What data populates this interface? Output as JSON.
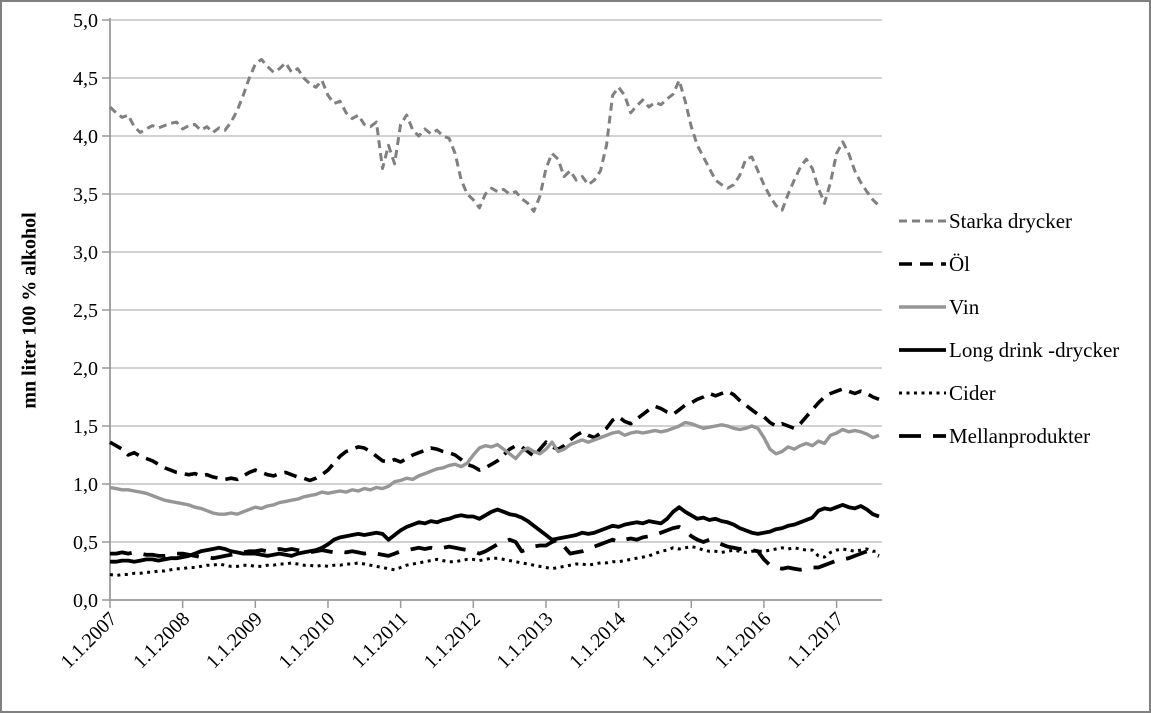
{
  "chart_data": {
    "type": "line",
    "title": "",
    "ylabel": "mn liter 100 % alkohol",
    "ylim": [
      0,
      5
    ],
    "grid": "horizontal",
    "legend_position": "right",
    "x_frequency": "monthly",
    "x_tick_labels": [
      "1.1.2007",
      "1.1.2008",
      "1.1.2009",
      "1.1.2010",
      "1.1.2011",
      "1.1.2012",
      "1.1.2013",
      "1.1.2014",
      "1.1.2015",
      "1.1.2016",
      "1.1.2017"
    ],
    "y_ticks": [
      {
        "v": 0.0,
        "label": "0,0"
      },
      {
        "v": 0.5,
        "label": "0,5"
      },
      {
        "v": 1.0,
        "label": "1,0"
      },
      {
        "v": 1.5,
        "label": "1,5"
      },
      {
        "v": 2.0,
        "label": "2,0"
      },
      {
        "v": 2.5,
        "label": "2,5"
      },
      {
        "v": 3.0,
        "label": "3,0"
      },
      {
        "v": 3.5,
        "label": "3,5"
      },
      {
        "v": 4.0,
        "label": "4,0"
      },
      {
        "v": 4.5,
        "label": "4,5"
      },
      {
        "v": 5.0,
        "label": "5,0"
      }
    ],
    "series": [
      {
        "name": "Starka drycker",
        "color": "#808080",
        "line": "dash",
        "dash": "8 5",
        "width": 3,
        "values": [
          4.25,
          4.2,
          4.16,
          4.18,
          4.08,
          4.03,
          4.06,
          4.09,
          4.07,
          4.09,
          4.11,
          4.12,
          4.06,
          4.09,
          4.1,
          4.05,
          4.08,
          4.03,
          4.07,
          4.05,
          4.12,
          4.22,
          4.35,
          4.5,
          4.62,
          4.66,
          4.6,
          4.55,
          4.58,
          4.63,
          4.55,
          4.58,
          4.5,
          4.45,
          4.42,
          4.48,
          4.35,
          4.28,
          4.3,
          4.2,
          4.15,
          4.18,
          4.1,
          4.08,
          4.12,
          3.72,
          3.92,
          3.76,
          4.1,
          4.18,
          4.05,
          4.0,
          4.06,
          4.02,
          4.05,
          4.0,
          3.98,
          3.85,
          3.62,
          3.5,
          3.45,
          3.38,
          3.5,
          3.55,
          3.52,
          3.54,
          3.5,
          3.52,
          3.46,
          3.42,
          3.35,
          3.48,
          3.72,
          3.85,
          3.8,
          3.65,
          3.7,
          3.62,
          3.65,
          3.58,
          3.62,
          3.7,
          3.92,
          4.35,
          4.42,
          4.35,
          4.2,
          4.26,
          4.31,
          4.25,
          4.29,
          4.27,
          4.32,
          4.36,
          4.48,
          4.3,
          4.08,
          3.92,
          3.82,
          3.72,
          3.62,
          3.58,
          3.55,
          3.58,
          3.66,
          3.8,
          3.82,
          3.7,
          3.58,
          3.48,
          3.4,
          3.36,
          3.5,
          3.62,
          3.73,
          3.8,
          3.72,
          3.55,
          3.42,
          3.6,
          3.85,
          3.95,
          3.85,
          3.7,
          3.6,
          3.52,
          3.45,
          3.4
        ]
      },
      {
        "name": "Öl",
        "color": "#000000",
        "line": "dash",
        "dash": "13 8",
        "width": 3.6,
        "values": [
          1.36,
          1.33,
          1.3,
          1.25,
          1.27,
          1.24,
          1.22,
          1.2,
          1.17,
          1.14,
          1.12,
          1.1,
          1.09,
          1.08,
          1.09,
          1.07,
          1.08,
          1.06,
          1.05,
          1.04,
          1.05,
          1.04,
          1.07,
          1.1,
          1.12,
          1.1,
          1.08,
          1.07,
          1.09,
          1.1,
          1.08,
          1.06,
          1.05,
          1.03,
          1.05,
          1.08,
          1.12,
          1.18,
          1.24,
          1.28,
          1.3,
          1.32,
          1.31,
          1.28,
          1.24,
          1.2,
          1.19,
          1.21,
          1.19,
          1.22,
          1.25,
          1.27,
          1.29,
          1.31,
          1.3,
          1.28,
          1.27,
          1.25,
          1.21,
          1.17,
          1.15,
          1.12,
          1.14,
          1.17,
          1.2,
          1.25,
          1.3,
          1.33,
          1.32,
          1.28,
          1.24,
          1.3,
          1.36,
          1.32,
          1.3,
          1.33,
          1.38,
          1.42,
          1.45,
          1.42,
          1.4,
          1.44,
          1.48,
          1.55,
          1.58,
          1.54,
          1.52,
          1.56,
          1.6,
          1.64,
          1.67,
          1.65,
          1.62,
          1.6,
          1.64,
          1.68,
          1.7,
          1.73,
          1.75,
          1.78,
          1.76,
          1.78,
          1.8,
          1.77,
          1.72,
          1.68,
          1.64,
          1.6,
          1.58,
          1.53,
          1.5,
          1.52,
          1.5,
          1.48,
          1.52,
          1.58,
          1.64,
          1.7,
          1.75,
          1.78,
          1.8,
          1.82,
          1.8,
          1.78,
          1.8,
          1.78,
          1.75,
          1.73
        ]
      },
      {
        "name": "Vin",
        "color": "#969696",
        "line": "solid",
        "dash": "",
        "width": 3.4,
        "values": [
          0.97,
          0.96,
          0.95,
          0.95,
          0.94,
          0.93,
          0.92,
          0.9,
          0.88,
          0.86,
          0.85,
          0.84,
          0.83,
          0.82,
          0.8,
          0.79,
          0.77,
          0.75,
          0.74,
          0.74,
          0.75,
          0.74,
          0.76,
          0.78,
          0.8,
          0.79,
          0.81,
          0.82,
          0.84,
          0.85,
          0.86,
          0.87,
          0.89,
          0.9,
          0.91,
          0.93,
          0.92,
          0.93,
          0.94,
          0.93,
          0.95,
          0.94,
          0.96,
          0.95,
          0.97,
          0.96,
          0.98,
          1.02,
          1.03,
          1.05,
          1.04,
          1.07,
          1.09,
          1.11,
          1.13,
          1.14,
          1.16,
          1.17,
          1.15,
          1.18,
          1.25,
          1.31,
          1.33,
          1.32,
          1.34,
          1.3,
          1.26,
          1.22,
          1.28,
          1.31,
          1.28,
          1.26,
          1.3,
          1.36,
          1.28,
          1.3,
          1.34,
          1.36,
          1.38,
          1.36,
          1.38,
          1.4,
          1.42,
          1.44,
          1.45,
          1.42,
          1.44,
          1.45,
          1.44,
          1.45,
          1.46,
          1.45,
          1.46,
          1.48,
          1.5,
          1.53,
          1.52,
          1.5,
          1.48,
          1.49,
          1.5,
          1.51,
          1.5,
          1.48,
          1.47,
          1.48,
          1.5,
          1.48,
          1.4,
          1.3,
          1.26,
          1.28,
          1.32,
          1.3,
          1.33,
          1.35,
          1.33,
          1.37,
          1.35,
          1.42,
          1.44,
          1.47,
          1.45,
          1.46,
          1.45,
          1.43,
          1.4,
          1.42
        ]
      },
      {
        "name": "Long drink -drycker",
        "color": "#000000",
        "line": "solid",
        "dash": "",
        "width": 3.8,
        "values": [
          0.33,
          0.33,
          0.34,
          0.34,
          0.33,
          0.34,
          0.35,
          0.35,
          0.34,
          0.35,
          0.36,
          0.36,
          0.37,
          0.38,
          0.4,
          0.42,
          0.43,
          0.44,
          0.45,
          0.44,
          0.42,
          0.41,
          0.4,
          0.4,
          0.4,
          0.39,
          0.38,
          0.39,
          0.4,
          0.39,
          0.38,
          0.4,
          0.41,
          0.42,
          0.43,
          0.45,
          0.48,
          0.52,
          0.54,
          0.55,
          0.56,
          0.57,
          0.56,
          0.57,
          0.58,
          0.57,
          0.52,
          0.56,
          0.6,
          0.63,
          0.65,
          0.67,
          0.66,
          0.68,
          0.67,
          0.69,
          0.7,
          0.72,
          0.73,
          0.72,
          0.72,
          0.7,
          0.73,
          0.76,
          0.78,
          0.76,
          0.74,
          0.73,
          0.71,
          0.68,
          0.64,
          0.6,
          0.56,
          0.52,
          0.53,
          0.54,
          0.55,
          0.56,
          0.58,
          0.57,
          0.58,
          0.6,
          0.62,
          0.64,
          0.63,
          0.65,
          0.66,
          0.67,
          0.66,
          0.68,
          0.67,
          0.66,
          0.7,
          0.76,
          0.8,
          0.76,
          0.73,
          0.7,
          0.71,
          0.69,
          0.7,
          0.68,
          0.67,
          0.65,
          0.62,
          0.6,
          0.58,
          0.57,
          0.58,
          0.59,
          0.61,
          0.62,
          0.64,
          0.65,
          0.67,
          0.69,
          0.71,
          0.77,
          0.79,
          0.78,
          0.8,
          0.82,
          0.8,
          0.79,
          0.81,
          0.78,
          0.74,
          0.72
        ]
      },
      {
        "name": "Cider",
        "color": "#000000",
        "line": "dotted",
        "dash": "3 4.5",
        "width": 3,
        "values": [
          0.22,
          0.21,
          0.22,
          0.22,
          0.23,
          0.23,
          0.24,
          0.24,
          0.25,
          0.25,
          0.26,
          0.27,
          0.27,
          0.28,
          0.28,
          0.29,
          0.3,
          0.3,
          0.31,
          0.3,
          0.29,
          0.29,
          0.3,
          0.3,
          0.29,
          0.29,
          0.3,
          0.3,
          0.31,
          0.31,
          0.32,
          0.31,
          0.3,
          0.3,
          0.29,
          0.3,
          0.29,
          0.3,
          0.3,
          0.31,
          0.31,
          0.32,
          0.31,
          0.3,
          0.29,
          0.28,
          0.27,
          0.26,
          0.28,
          0.3,
          0.31,
          0.32,
          0.33,
          0.34,
          0.35,
          0.34,
          0.33,
          0.33,
          0.34,
          0.35,
          0.35,
          0.34,
          0.35,
          0.36,
          0.36,
          0.35,
          0.34,
          0.33,
          0.32,
          0.31,
          0.3,
          0.29,
          0.28,
          0.27,
          0.28,
          0.29,
          0.3,
          0.31,
          0.31,
          0.3,
          0.31,
          0.32,
          0.32,
          0.33,
          0.33,
          0.34,
          0.35,
          0.36,
          0.37,
          0.38,
          0.4,
          0.42,
          0.43,
          0.45,
          0.44,
          0.45,
          0.46,
          0.45,
          0.43,
          0.42,
          0.42,
          0.41,
          0.42,
          0.43,
          0.42,
          0.41,
          0.42,
          0.42,
          0.42,
          0.43,
          0.44,
          0.45,
          0.44,
          0.45,
          0.44,
          0.43,
          0.43,
          0.38,
          0.37,
          0.41,
          0.43,
          0.44,
          0.43,
          0.42,
          0.43,
          0.44,
          0.42,
          0.42
        ]
      },
      {
        "name": "Mellanprodukter",
        "color": "#000000",
        "line": "long-dash",
        "dash": "22 12",
        "width": 3.8,
        "values": [
          0.4,
          0.4,
          0.41,
          0.4,
          0.41,
          0.4,
          0.39,
          0.39,
          0.38,
          0.38,
          0.39,
          0.4,
          0.4,
          0.39,
          0.38,
          0.37,
          0.37,
          0.36,
          0.37,
          0.38,
          0.39,
          0.4,
          0.41,
          0.42,
          0.42,
          0.43,
          0.42,
          0.43,
          0.44,
          0.43,
          0.44,
          0.43,
          0.42,
          0.41,
          0.42,
          0.43,
          0.42,
          0.41,
          0.42,
          0.41,
          0.42,
          0.41,
          0.4,
          0.41,
          0.4,
          0.39,
          0.38,
          0.4,
          0.42,
          0.43,
          0.44,
          0.45,
          0.44,
          0.45,
          0.44,
          0.45,
          0.46,
          0.45,
          0.44,
          0.43,
          0.42,
          0.4,
          0.42,
          0.45,
          0.48,
          0.5,
          0.52,
          0.5,
          0.42,
          0.44,
          0.46,
          0.47,
          0.47,
          0.5,
          0.52,
          0.46,
          0.4,
          0.41,
          0.42,
          0.44,
          0.46,
          0.48,
          0.5,
          0.52,
          0.5,
          0.52,
          0.53,
          0.52,
          0.54,
          0.55,
          0.56,
          0.58,
          0.6,
          0.62,
          0.63,
          0.6,
          0.55,
          0.52,
          0.5,
          0.52,
          0.5,
          0.48,
          0.46,
          0.45,
          0.44,
          0.45,
          0.43,
          0.42,
          0.35,
          0.3,
          0.28,
          0.27,
          0.28,
          0.27,
          0.26,
          0.27,
          0.28,
          0.28,
          0.3,
          0.32,
          0.34,
          0.35,
          0.36,
          0.38,
          0.4,
          0.42,
          0.4,
          0.38
        ]
      }
    ]
  }
}
